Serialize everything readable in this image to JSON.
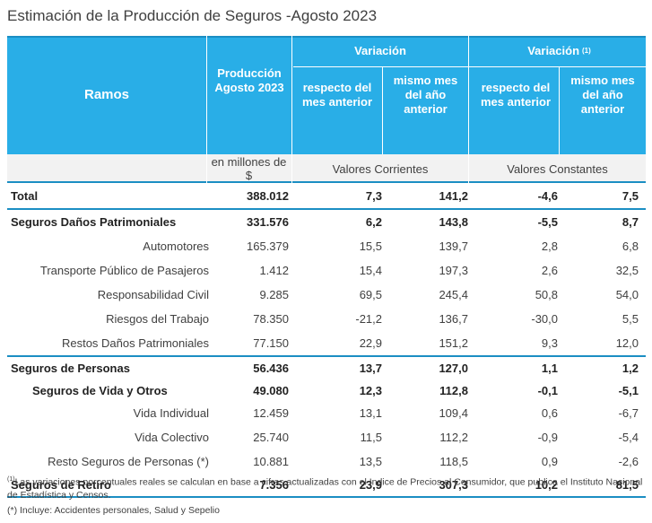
{
  "title": "Estimación de la Producción de Seguros -Agosto 2023",
  "header": {
    "ramos": "Ramos",
    "produccion_line1": "Producción",
    "produccion_line2": "Agosto 2023",
    "variacion": "Variación",
    "variacion_real": "Variación",
    "variacion_real_note": "(1)",
    "resp_mes_line1": "respecto del",
    "resp_mes_line2": "mes anterior",
    "mismo_mes_line1": "mismo mes",
    "mismo_mes_line2": "del año",
    "mismo_mes_line3": "anterior",
    "units_line1": "en millones de",
    "units_line2": "$",
    "valores_corrientes": "Valores Corrientes",
    "valores_constantes": "Valores Constantes"
  },
  "rows": [
    {
      "label": "Total",
      "prod": "388.012",
      "vc_mes": "7,3",
      "vc_anio": "141,2",
      "vk_mes": "-4,6",
      "vk_anio": "7,5"
    },
    {
      "label": "Seguros Daños Patrimoniales",
      "prod": "331.576",
      "vc_mes": "6,2",
      "vc_anio": "143,8",
      "vk_mes": "-5,5",
      "vk_anio": "8,7"
    },
    {
      "label": "Automotores",
      "prod": "165.379",
      "vc_mes": "15,5",
      "vc_anio": "139,7",
      "vk_mes": "2,8",
      "vk_anio": "6,8"
    },
    {
      "label": "Transporte Público de Pasajeros",
      "prod": "1.412",
      "vc_mes": "15,4",
      "vc_anio": "197,3",
      "vk_mes": "2,6",
      "vk_anio": "32,5"
    },
    {
      "label": "Responsabilidad Civil",
      "prod": "9.285",
      "vc_mes": "69,5",
      "vc_anio": "245,4",
      "vk_mes": "50,8",
      "vk_anio": "54,0"
    },
    {
      "label": "Riesgos del Trabajo",
      "prod": "78.350",
      "vc_mes": "-21,2",
      "vc_anio": "136,7",
      "vk_mes": "-30,0",
      "vk_anio": "5,5"
    },
    {
      "label": "Restos Daños Patrimoniales",
      "prod": "77.150",
      "vc_mes": "22,9",
      "vc_anio": "151,2",
      "vk_mes": "9,3",
      "vk_anio": "12,0"
    },
    {
      "label": "Seguros de Personas",
      "prod": "56.436",
      "vc_mes": "13,7",
      "vc_anio": "127,0",
      "vk_mes": "1,1",
      "vk_anio": "1,2"
    },
    {
      "label": "Seguros de Vida y Otros",
      "prod": "49.080",
      "vc_mes": "12,3",
      "vc_anio": "112,8",
      "vk_mes": "-0,1",
      "vk_anio": "-5,1"
    },
    {
      "label": "Vida Individual",
      "prod": "12.459",
      "vc_mes": "13,1",
      "vc_anio": "109,4",
      "vk_mes": "0,6",
      "vk_anio": "-6,7"
    },
    {
      "label": "Vida Colectivo",
      "prod": "25.740",
      "vc_mes": "11,5",
      "vc_anio": "112,2",
      "vk_mes": "-0,9",
      "vk_anio": "-5,4"
    },
    {
      "label": "Resto Seguros de Personas (*)",
      "prod": "10.881",
      "vc_mes": "13,5",
      "vc_anio": "118,5",
      "vk_mes": "0,9",
      "vk_anio": "-2,6"
    },
    {
      "label": "Seguros de Retiro",
      "prod": "7.356",
      "vc_mes": "23,9",
      "vc_anio": "307,3",
      "vk_mes": "10,2",
      "vk_anio": "81,5"
    }
  ],
  "notes": {
    "note1_mark": "(1)",
    "note1": "Las variaciones porcentuales reales se calculan en base a cifras actualizadas con  el Indice de Precios al Consumidor, que publica el Instituto Nacional de Estadística y  Censos.",
    "note2": "(*) Incluye: Accidentes personales, Salud y Sepelio"
  }
}
